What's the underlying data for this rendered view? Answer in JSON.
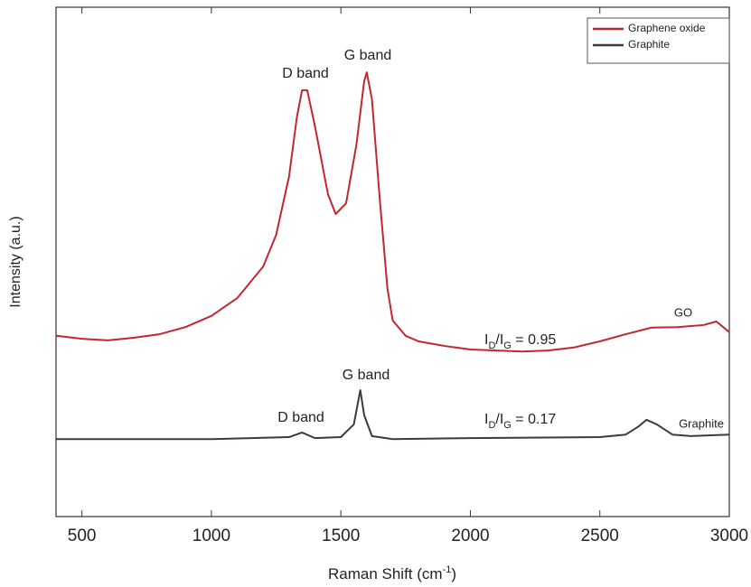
{
  "chart_data": {
    "type": "line",
    "xlabel": [
      "Raman Shift (cm",
      "-1",
      ")"
    ],
    "ylabel": "Intensity (a.u.)",
    "xlim": [
      400,
      3000
    ],
    "ylim": [
      0,
      100
    ],
    "xticks": [
      500,
      1000,
      1500,
      2000,
      2500,
      3000
    ],
    "legend": "upper right",
    "series": [
      {
        "name": "Graphene oxide",
        "color": "#c0282f",
        "x": [
          400,
          500,
          600,
          700,
          800,
          900,
          1000,
          1100,
          1200,
          1250,
          1300,
          1330,
          1350,
          1370,
          1400,
          1450,
          1480,
          1520,
          1560,
          1590,
          1600,
          1620,
          1650,
          1680,
          1700,
          1750,
          1800,
          1900,
          2000,
          2100,
          2200,
          2300,
          2400,
          2500,
          2600,
          2700,
          2800,
          2900,
          2950,
          3000
        ],
        "values": [
          35.5,
          34.9,
          34.6,
          35.1,
          35.8,
          37.2,
          39.4,
          42.9,
          49.1,
          55.3,
          66.8,
          78.4,
          83.7,
          83.7,
          76.6,
          63.3,
          59.4,
          61.5,
          73.0,
          85.5,
          87.2,
          81.9,
          62.4,
          44.7,
          38.5,
          35.5,
          34.4,
          33.5,
          32.8,
          32.6,
          32.4,
          32.6,
          33.2,
          34.4,
          35.8,
          37.1,
          37.2,
          37.6,
          38.3,
          36.2
        ]
      },
      {
        "name": "Graphite",
        "color": "#3a3a44",
        "x": [
          400,
          1000,
          1300,
          1350,
          1400,
          1500,
          1550,
          1575,
          1590,
          1620,
          1700,
          2000,
          2500,
          2600,
          2650,
          2680,
          2720,
          2780,
          2850,
          3000
        ],
        "values": [
          15.2,
          15.2,
          15.6,
          16.5,
          15.4,
          15.6,
          18.1,
          24.8,
          19.9,
          15.8,
          15.2,
          15.4,
          15.6,
          16.1,
          17.7,
          19.0,
          18.1,
          16.1,
          15.8,
          16.1
        ]
      }
    ],
    "annotations": [
      "D band",
      "G band",
      "D band",
      "G band",
      "GO",
      "Graphite"
    ],
    "ratio_labels": [
      [
        "I",
        "D",
        "/I",
        "G",
        " = 0.95"
      ],
      [
        "I",
        "D",
        "/I",
        "G",
        " = 0.17"
      ]
    ]
  }
}
